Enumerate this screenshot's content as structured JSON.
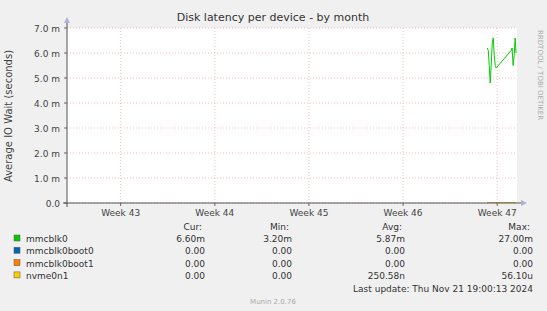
{
  "chart_data": {
    "type": "line",
    "title": "Disk latency per device - by month",
    "y_label": "Average IO Wait (seconds)",
    "x": [
      46.894,
      46.905,
      46.915,
      46.926,
      46.937,
      46.947,
      46.958,
      46.968,
      46.979,
      46.989,
      47.148,
      47.158,
      47.169,
      47.18,
      47.19,
      47.2
    ],
    "series": [
      {
        "name": "mmcblk0boot0",
        "color": "#0066b3",
        "values": [
          0,
          0,
          0,
          0,
          0,
          0,
          0,
          0,
          0,
          0,
          0,
          0,
          0,
          0,
          0,
          0
        ]
      },
      {
        "name": "mmcblk0boot1",
        "color": "#ff8000",
        "values": [
          0,
          0,
          0,
          0,
          0,
          0,
          0,
          0,
          0,
          0,
          0,
          0,
          0,
          0,
          0,
          0
        ]
      },
      {
        "name": "nvme0n1",
        "color": "#ffcc00",
        "values": [
          0,
          0,
          0,
          0,
          0,
          0,
          0,
          0,
          0,
          0,
          0,
          0,
          0,
          0,
          0,
          0
        ]
      },
      {
        "name": "mmcblk0",
        "color": "#00cc00",
        "values": [
          0.0062,
          0.0061,
          0.0055,
          0.0048,
          0.0056,
          0.0064,
          0.0066,
          0.0059,
          0.0055,
          0.0054,
          0.0061,
          0.0062,
          0.0055,
          0.0059,
          0.0066,
          0.006
        ]
      }
    ],
    "xlim": [
      42.43,
      47.21
    ],
    "xticks": [
      {
        "value": 43,
        "label": "Week 43"
      },
      {
        "value": 44,
        "label": "Week 44"
      },
      {
        "value": 45,
        "label": "Week 45"
      },
      {
        "value": 46,
        "label": "Week 46"
      },
      {
        "value": 47,
        "label": "Week 47"
      }
    ],
    "ylim": [
      0,
      0.007
    ],
    "yticks": [
      {
        "value": 0,
        "label": "0.0"
      },
      {
        "value": 0.001,
        "label": "1.0 m"
      },
      {
        "value": 0.002,
        "label": "2.0 m"
      },
      {
        "value": 0.003,
        "label": "3.0 m"
      },
      {
        "value": 0.004,
        "label": "4.0 m"
      },
      {
        "value": 0.005,
        "label": "5.0 m"
      },
      {
        "value": 0.006,
        "label": "6.0 m"
      },
      {
        "value": 0.007,
        "label": "7.0 m"
      }
    ],
    "grid": true
  },
  "legend_table": {
    "columns": [
      "Cur:",
      "Min:",
      "Avg:",
      "Max:"
    ],
    "rows": [
      {
        "name": "mmcblk0",
        "color": "#00cc00",
        "cells": [
          "6.60m",
          "3.20m",
          "5.87m",
          "27.00m"
        ]
      },
      {
        "name": "mmcblk0boot0",
        "color": "#0066b3",
        "cells": [
          "0.00",
          "0.00",
          "0.00",
          "0.00"
        ]
      },
      {
        "name": "mmcblk0boot1",
        "color": "#ff8000",
        "cells": [
          "0.00",
          "0.00",
          "0.00",
          "0.00"
        ]
      },
      {
        "name": "nvme0n1",
        "color": "#ffcc00",
        "cells": [
          "0.00",
          "0.00",
          "250.58n",
          "56.10u"
        ]
      }
    ]
  },
  "last_update": "Last update: Thu Nov 21 19:00:13 2024",
  "generator": "Munin 2.0.76",
  "watermark": "RRDTOOL / TOBI OETIKER"
}
